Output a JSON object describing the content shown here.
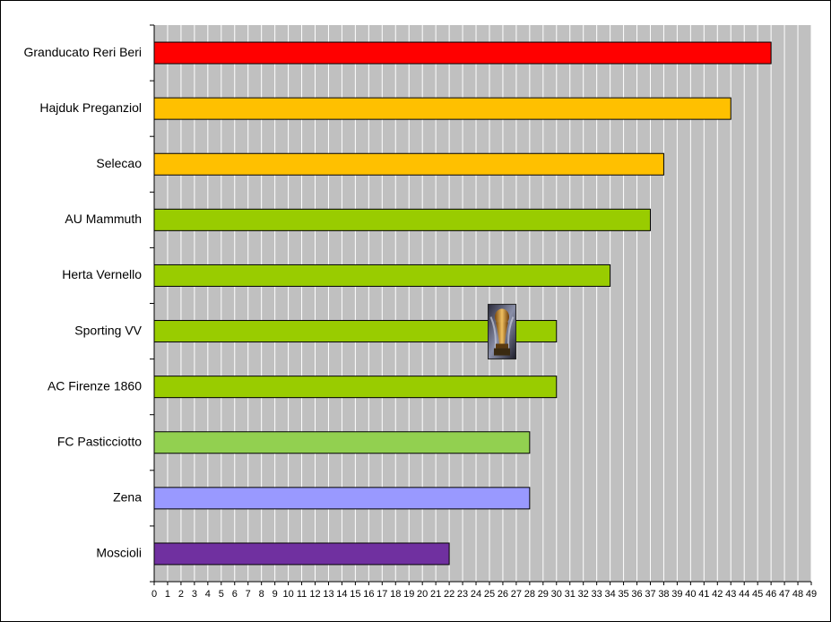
{
  "chart_data": {
    "type": "bar",
    "orientation": "horizontal",
    "categories": [
      "Granducato Reri Beri",
      "Hajduk Preganziol",
      "Selecao",
      "AU Mammuth",
      "Herta Vernello",
      "Sporting VV",
      "AC Firenze 1860",
      "FC Pasticciotto",
      "Zena",
      "Moscioli"
    ],
    "values": [
      46,
      43,
      38,
      37,
      34,
      30,
      30,
      28,
      28,
      22
    ],
    "bar_colors": [
      "#ff0000",
      "#ffc000",
      "#ffc000",
      "#99cc00",
      "#99cc00",
      "#99cc00",
      "#99cc00",
      "#92d050",
      "#9999ff",
      "#7030a0"
    ],
    "xlim": [
      0,
      49
    ],
    "x_ticks": [
      0,
      1,
      2,
      3,
      4,
      5,
      6,
      7,
      8,
      9,
      10,
      11,
      12,
      13,
      14,
      15,
      16,
      17,
      18,
      19,
      20,
      21,
      22,
      23,
      24,
      25,
      26,
      27,
      28,
      29,
      30,
      31,
      32,
      33,
      34,
      35,
      36,
      37,
      38,
      39,
      40,
      41,
      42,
      43,
      44,
      45,
      46,
      47,
      48,
      49
    ],
    "grid": "vertical",
    "plot_background": "#c0c0c0",
    "gridline_color": "#ffffff",
    "title": "",
    "xlabel": "",
    "ylabel": "",
    "legend": "none",
    "annotation_icon": "trophy-icon",
    "annotation_category": "Sporting VV"
  }
}
